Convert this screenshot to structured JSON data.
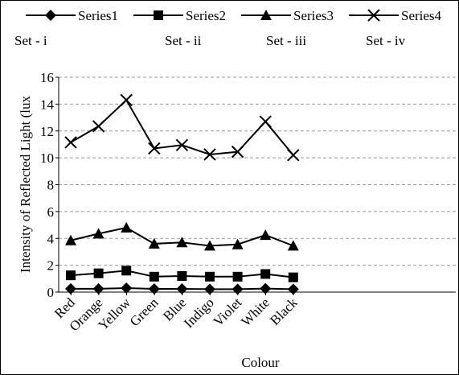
{
  "chart_data": {
    "type": "line",
    "categories": [
      "Red",
      "Orange",
      "Yellow",
      "Green",
      "Blue",
      "Indigo",
      "Violet",
      "White",
      "Black"
    ],
    "series": [
      {
        "name": "Series1",
        "marker": "diamond",
        "values": [
          0.25,
          0.25,
          0.3,
          0.24,
          0.24,
          0.22,
          0.22,
          0.26,
          0.22
        ]
      },
      {
        "name": "Series2",
        "marker": "square",
        "values": [
          1.25,
          1.4,
          1.6,
          1.15,
          1.2,
          1.15,
          1.15,
          1.35,
          1.1
        ]
      },
      {
        "name": "Series3",
        "marker": "triangle",
        "values": [
          3.85,
          4.35,
          4.8,
          3.6,
          3.7,
          3.45,
          3.55,
          4.25,
          3.45
        ]
      },
      {
        "name": "Series4",
        "marker": "x",
        "values": [
          11.15,
          12.35,
          14.3,
          10.7,
          10.95,
          10.25,
          10.45,
          12.7,
          10.2
        ]
      }
    ],
    "set_labels": [
      "Set - i",
      "Set - ii",
      "Set - iii",
      "Set - iv"
    ],
    "xlabel": "Colour",
    "ylabel": "Intensity of Reflected Light (lux",
    "ylim": [
      0,
      16
    ],
    "yticks": [
      0,
      2,
      4,
      6,
      8,
      10,
      12,
      14,
      16
    ],
    "grid": "horizontal-dashed",
    "legend_position": "top",
    "line_color": "#000000",
    "grid_color": "#999999"
  }
}
